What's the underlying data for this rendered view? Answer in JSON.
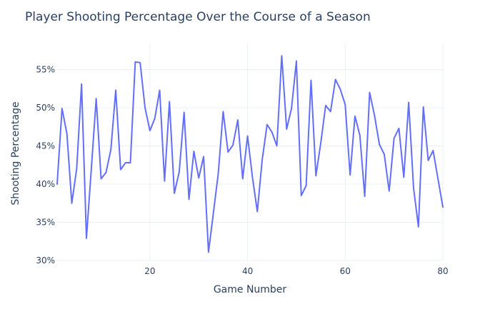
{
  "chart_data": {
    "type": "line",
    "title": "Player Shooting Percentage Over the Course of a Season",
    "xlabel": "Game Number",
    "ylabel": "Shooting Percentage",
    "xlim": [
      1,
      80
    ],
    "ylim": [
      0.3,
      0.585
    ],
    "x_ticks": [
      {
        "value": 20,
        "label": "20"
      },
      {
        "value": 40,
        "label": "40"
      },
      {
        "value": 60,
        "label": "60"
      },
      {
        "value": 80,
        "label": "80"
      }
    ],
    "y_ticks": [
      {
        "value": 0.3,
        "label": "30%"
      },
      {
        "value": 0.35,
        "label": "35%"
      },
      {
        "value": 0.4,
        "label": "40%"
      },
      {
        "value": 0.45,
        "label": "45%"
      },
      {
        "value": 0.5,
        "label": "50%"
      },
      {
        "value": 0.55,
        "label": "55%"
      }
    ],
    "grid": true,
    "legend": "none",
    "colors": {
      "line": "#636efa",
      "grid": "#ebf0f8",
      "text": "#2a3f5f",
      "background": "#ffffff"
    },
    "series": [
      {
        "x": [
          1,
          2,
          3,
          4,
          5,
          6,
          7,
          8,
          9,
          10,
          11,
          12,
          13,
          14,
          15,
          16,
          17,
          18,
          19,
          20,
          21,
          22,
          23,
          24,
          25,
          26,
          27,
          28,
          29,
          30,
          31,
          32,
          33,
          34,
          35,
          36,
          37,
          38,
          39,
          40,
          41,
          42,
          43,
          44,
          45,
          46,
          47,
          48,
          49,
          50,
          51,
          52,
          53,
          54,
          55,
          56,
          57,
          58,
          59,
          60,
          61,
          62,
          63,
          64,
          65,
          66,
          67,
          68,
          69,
          70,
          71,
          72,
          73,
          74,
          75,
          76,
          77,
          78,
          79,
          80
        ],
        "values": [
          0.4,
          0.499,
          0.466,
          0.375,
          0.42,
          0.531,
          0.329,
          0.42,
          0.512,
          0.407,
          0.415,
          0.445,
          0.523,
          0.419,
          0.428,
          0.428,
          0.56,
          0.559,
          0.5,
          0.47,
          0.486,
          0.523,
          0.404,
          0.508,
          0.388,
          0.416,
          0.494,
          0.38,
          0.443,
          0.408,
          0.436,
          0.311,
          0.362,
          0.414,
          0.495,
          0.442,
          0.451,
          0.484,
          0.407,
          0.463,
          0.409,
          0.364,
          0.432,
          0.478,
          0.468,
          0.45,
          0.568,
          0.472,
          0.499,
          0.561,
          0.385,
          0.398,
          0.536,
          0.411,
          0.454,
          0.503,
          0.495,
          0.537,
          0.524,
          0.504,
          0.412,
          0.489,
          0.464,
          0.384,
          0.52,
          0.49,
          0.452,
          0.439,
          0.391,
          0.46,
          0.473,
          0.409,
          0.507,
          0.395,
          0.344,
          0.501,
          0.431,
          0.444,
          0.407,
          0.37
        ]
      }
    ]
  }
}
